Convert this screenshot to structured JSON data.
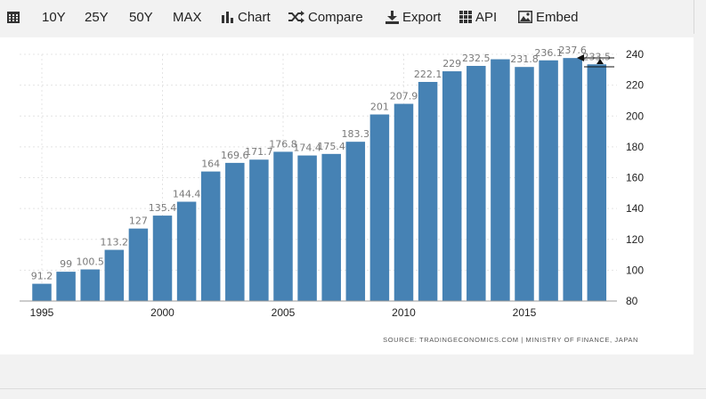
{
  "toolbar": {
    "items": [
      {
        "label": "",
        "icon": "calendar-icon"
      },
      {
        "label": "10Y"
      },
      {
        "label": "25Y"
      },
      {
        "label": "50Y"
      },
      {
        "label": "MAX"
      },
      {
        "label": "Chart",
        "icon": "bar-chart-icon"
      },
      {
        "label": "Compare",
        "icon": "shuffle-icon"
      },
      {
        "label": "Export",
        "icon": "download-icon"
      },
      {
        "label": "API",
        "icon": "grid-icon"
      },
      {
        "label": "Embed",
        "icon": "image-icon"
      }
    ]
  },
  "chart_data": {
    "type": "bar",
    "title": "",
    "xlabel": "",
    "ylabel": "",
    "x": [
      1995,
      1996,
      1997,
      1998,
      1999,
      2000,
      2001,
      2002,
      2003,
      2004,
      2005,
      2006,
      2007,
      2008,
      2009,
      2010,
      2011,
      2012,
      2013,
      2014,
      2015,
      2016,
      2017,
      2018
    ],
    "values": [
      91.2,
      99,
      100.5,
      113.2,
      127,
      135.4,
      144.4,
      164,
      169.6,
      171.7,
      176.8,
      174.4,
      175.4,
      183.3,
      201,
      207.9,
      222.1,
      229,
      232.5,
      236.8,
      231.8,
      236.1,
      237.6,
      233.5
    ],
    "data_labels": [
      "91.2",
      "99",
      "100.5",
      "113.2",
      "127",
      "135.4",
      "144.4",
      "164",
      "169.6",
      "171.7",
      "176.8",
      "174.4",
      "175.4",
      "183.3",
      "201",
      "207.9",
      "222.1",
      "229",
      "232.5",
      "",
      "231.8",
      "236.1",
      "237.6",
      "233.5"
    ],
    "ylim": [
      80,
      240
    ],
    "yticks": [
      80,
      100,
      120,
      140,
      160,
      180,
      200,
      220,
      240
    ],
    "xticks": [
      "1995",
      "2000",
      "2005",
      "2010",
      "2015"
    ],
    "bar_color": "#4682b4",
    "grid": true,
    "y_axis_position": "right",
    "source": "SOURCE: TRADINGECONOMICS.COM | MINISTRY OF FINANCE, JAPAN"
  }
}
